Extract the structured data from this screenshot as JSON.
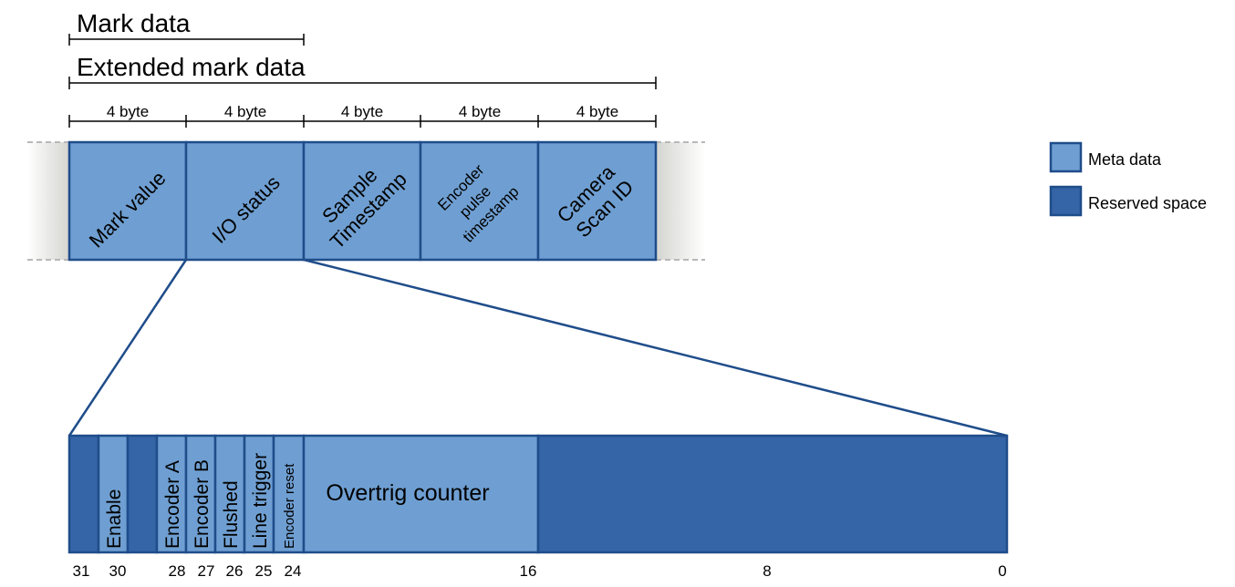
{
  "top_labels": {
    "mark_data": "Mark data",
    "extended_mark_data": "Extended mark data",
    "field_size": "4 byte"
  },
  "fields": [
    {
      "lines": [
        "Mark value"
      ]
    },
    {
      "lines": [
        "I/O status"
      ]
    },
    {
      "lines": [
        "Sample",
        "Timestamp"
      ]
    },
    {
      "lines": [
        "Encoder",
        "pulse",
        "timestamp"
      ]
    },
    {
      "lines": [
        "Camera",
        "Scan ID"
      ]
    }
  ],
  "io_bits": {
    "enable": "Enable",
    "encoder_a": "Encoder A",
    "encoder_b": "Encoder B",
    "flushed": "Flushed",
    "line_trigger": "Line trigger",
    "encoder_reset": "Encoder reset",
    "overtrig_counter": "Overtrig counter"
  },
  "bit_numbers": [
    "31",
    "30",
    "28",
    "27",
    "26",
    "25",
    "24",
    "16",
    "8",
    "0"
  ],
  "legend": {
    "meta": "Meta data",
    "reserved": "Reserved space"
  },
  "colors": {
    "meta": "#6f9fd2",
    "reserved": "#3565a6",
    "border": "#1f4d8a"
  }
}
